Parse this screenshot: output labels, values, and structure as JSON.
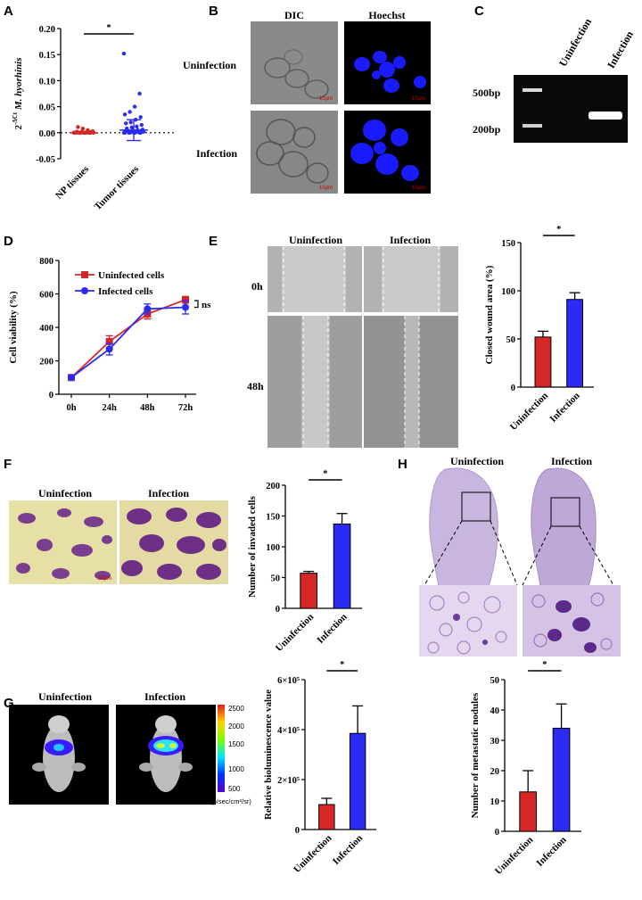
{
  "panels": {
    "A": "A",
    "B": "B",
    "C": "C",
    "D": "D",
    "E": "E",
    "F": "F",
    "G": "G",
    "H": "H"
  },
  "colors": {
    "red": "#d62727",
    "blue": "#2b2bf5",
    "black": "#000000"
  },
  "panelB": {
    "col_headers": [
      "DIC",
      "Hoechst"
    ],
    "row_labels": [
      "Uninfection",
      "Infection"
    ],
    "scale_text": "10μm"
  },
  "panelC": {
    "col_headers": [
      "Uninfection",
      "Infection"
    ],
    "ladder_labels": [
      "500bp",
      "200bp"
    ]
  },
  "panelE": {
    "col_headers": [
      "Uninfection",
      "Infection"
    ],
    "row_labels": [
      "0h",
      "48h"
    ]
  },
  "panelF": {
    "col_headers": [
      "Uninfection",
      "Infection"
    ],
    "scale_text": "50μm"
  },
  "panelG": {
    "col_headers": [
      "Uninfection",
      "Infection"
    ],
    "colorbar_ticks": [
      "2500",
      "2000",
      "1500",
      "1000",
      "500"
    ],
    "colorbar_unit": "(p/sec/cm²/sr)"
  },
  "panelH": {
    "col_headers": [
      "Uninfection",
      "Infection"
    ]
  },
  "chart_data": [
    {
      "id": "A",
      "type": "scatter",
      "ylabel": "2^-ΔCt M. hyorhinis",
      "ylim": [
        -0.05,
        0.2
      ],
      "yticks": [
        "0.20",
        "0.15",
        "0.10",
        "0.05",
        "0.00",
        "-0.05"
      ],
      "categories": [
        "NP tissues",
        "Tumor tissues"
      ],
      "series": [
        {
          "name": "NP tissues",
          "color": "#d62727",
          "mean": 0.0,
          "sd": 0.002,
          "values": [
            0.0,
            0.0,
            0.0,
            0.0,
            0.0,
            0.0,
            0.0,
            0.0,
            0.0,
            0.001,
            0.001,
            0.002,
            0.002,
            0.003,
            0.005,
            0.008,
            0.011,
            0.0,
            0.0,
            0.0,
            0.0,
            0.0,
            0.001,
            0.0
          ]
        },
        {
          "name": "Tumor tissues",
          "color": "#2b2bf5",
          "mean": 0.005,
          "sd": 0.02,
          "values": [
            0.152,
            0.075,
            0.05,
            0.04,
            0.035,
            0.03,
            0.025,
            0.02,
            0.018,
            0.015,
            0.012,
            0.01,
            0.008,
            0.006,
            0.005,
            0.004,
            0.003,
            0.002,
            0.001,
            0.0,
            0.0,
            0.0,
            0.0,
            0.0,
            0.0,
            0.0,
            0.0,
            0.001,
            0.002,
            0.003,
            0.004
          ]
        }
      ],
      "significance": "*"
    },
    {
      "id": "D",
      "type": "line",
      "ylabel": "Cell viability (%)",
      "ylim": [
        0,
        800
      ],
      "yticks": [
        "800",
        "600",
        "400",
        "200",
        "0"
      ],
      "categories": [
        "0h",
        "24h",
        "48h",
        "72h"
      ],
      "series": [
        {
          "name": "Uninfected cells",
          "color": "#d62727",
          "values": [
            100,
            315,
            480,
            565
          ],
          "errors": [
            5,
            35,
            30,
            20
          ]
        },
        {
          "name": "Infected cells",
          "color": "#2b2bf5",
          "values": [
            100,
            270,
            510,
            520
          ],
          "errors": [
            5,
            35,
            30,
            40
          ]
        }
      ],
      "annotation": "ns",
      "legend": "top-left"
    },
    {
      "id": "E",
      "type": "bar",
      "ylabel": "Closed wound area (%)",
      "ylim": [
        0,
        150
      ],
      "yticks": [
        "150",
        "100",
        "50",
        "0"
      ],
      "categories": [
        "Uninfection",
        "Infection"
      ],
      "values": [
        52,
        91
      ],
      "errors": [
        6,
        7
      ],
      "colors": [
        "#d62727",
        "#2b2bf5"
      ],
      "significance": "*"
    },
    {
      "id": "F",
      "type": "bar",
      "ylabel": "Number of invaded cells",
      "ylim": [
        0,
        200
      ],
      "yticks": [
        "200",
        "150",
        "100",
        "50",
        "0"
      ],
      "categories": [
        "Uninfection",
        "Infection"
      ],
      "values": [
        57,
        137
      ],
      "errors": [
        3,
        17
      ],
      "colors": [
        "#d62727",
        "#2b2bf5"
      ],
      "significance": "*"
    },
    {
      "id": "G",
      "type": "bar",
      "ylabel": "Relative bioluminescence value",
      "ylim": [
        0,
        600000
      ],
      "yticks": [
        "6×10⁵",
        "4×10⁵",
        "2×10⁵",
        "0"
      ],
      "categories": [
        "Uninfection",
        "Infection"
      ],
      "values": [
        100000,
        385000
      ],
      "errors": [
        25000,
        110000
      ],
      "colors": [
        "#d62727",
        "#2b2bf5"
      ],
      "significance": "*"
    },
    {
      "id": "H",
      "type": "bar",
      "ylabel": "Number of metastatic nodules",
      "ylim": [
        0,
        50
      ],
      "yticks": [
        "50",
        "40",
        "30",
        "20",
        "10",
        "0"
      ],
      "categories": [
        "Uninfection",
        "Infection"
      ],
      "values": [
        13,
        34
      ],
      "errors": [
        7,
        8
      ],
      "colors": [
        "#d62727",
        "#2b2bf5"
      ],
      "significance": "*"
    }
  ]
}
